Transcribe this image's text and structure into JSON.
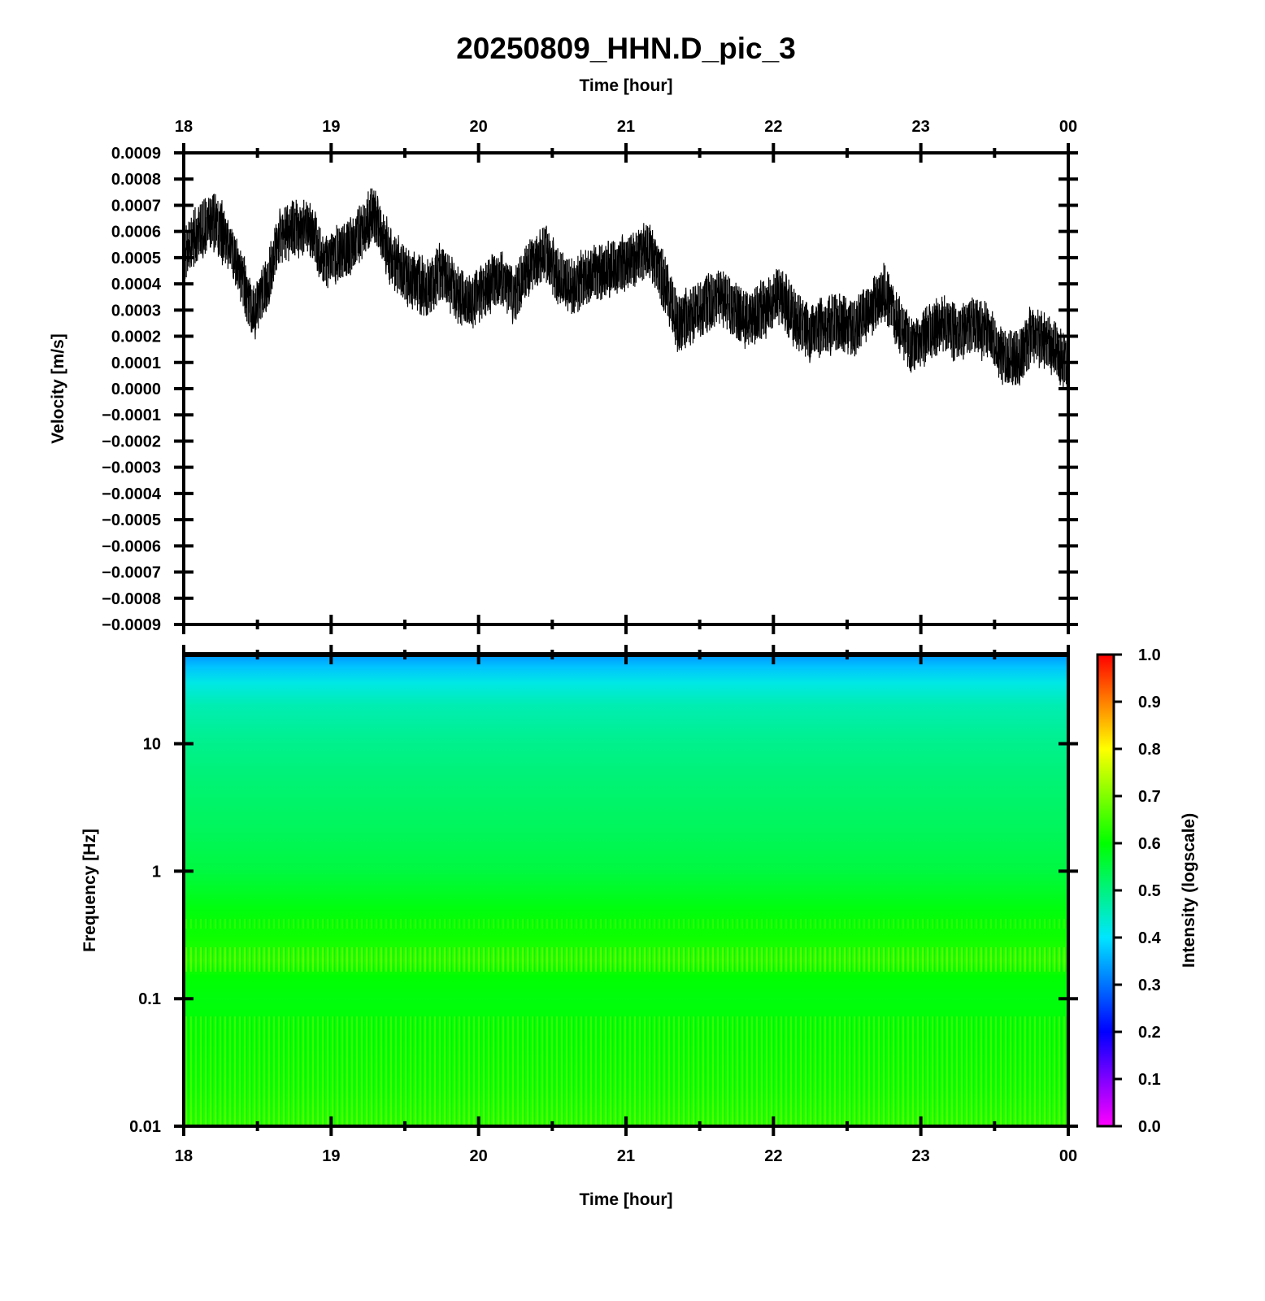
{
  "chart_data": [
    {
      "type": "line",
      "title": "20250809_HHN.D_pic_3",
      "xlabel": "Time [hour]",
      "ylabel": "Velocity [m/s]",
      "x_tick_labels": [
        "18",
        "19",
        "20",
        "21",
        "22",
        "23",
        "00"
      ],
      "y_tick_labels": [
        "0.0009",
        "0.0008",
        "0.0007",
        "0.0006",
        "0.0005",
        "0.0004",
        "0.0003",
        "0.0002",
        "0.0001",
        "0.0000",
        "−0.0001",
        "−0.0002",
        "−0.0003",
        "−0.0004",
        "−0.0005",
        "−0.0006",
        "−0.0007",
        "−0.0008",
        "−0.0009"
      ],
      "xlim": [
        18,
        24
      ],
      "ylim": [
        -0.0009,
        0.0009
      ],
      "grid": false,
      "line_color": "#000000",
      "series": [
        {
          "x": [
            18.0,
            18.1,
            18.2,
            18.3,
            18.4,
            18.47,
            18.55,
            18.65,
            18.75,
            18.85,
            18.95,
            19.05,
            19.15,
            19.28,
            19.4,
            19.55,
            19.65,
            19.75,
            19.85,
            19.95,
            20.05,
            20.15,
            20.25,
            20.35,
            20.45,
            20.55,
            20.65,
            20.75,
            20.85,
            20.95,
            21.05,
            21.15,
            21.25,
            21.35,
            21.45,
            21.55,
            21.65,
            21.75,
            21.85,
            21.95,
            22.05,
            22.15,
            22.25,
            22.35,
            22.45,
            22.55,
            22.65,
            22.75,
            22.85,
            22.95,
            23.05,
            23.15,
            23.25,
            23.35,
            23.45,
            23.55,
            23.65,
            23.75,
            23.85,
            23.95,
            24.0
          ],
          "y": [
            0.00052,
            0.0006,
            0.00064,
            0.00056,
            0.00042,
            0.00029,
            0.00037,
            0.00058,
            0.00061,
            0.00062,
            0.00048,
            0.00052,
            0.00055,
            0.00067,
            0.0005,
            0.00041,
            0.00038,
            0.00045,
            0.00036,
            0.00033,
            0.00039,
            0.00042,
            0.00036,
            0.00047,
            0.00052,
            0.00042,
            0.00039,
            0.00043,
            0.00045,
            0.00047,
            0.00049,
            0.00053,
            0.00042,
            0.00025,
            0.00028,
            0.00033,
            0.00036,
            0.00029,
            0.00026,
            0.00031,
            0.00036,
            0.00026,
            0.00021,
            0.00024,
            0.00026,
            0.00023,
            0.0003,
            0.00037,
            0.00025,
            0.00016,
            0.00021,
            0.00025,
            0.00021,
            0.00024,
            0.00022,
            0.00012,
            0.00011,
            0.0002,
            0.00018,
            0.00012,
            7e-05
          ],
          "noise_band": 0.00016
        }
      ]
    },
    {
      "type": "heatmap",
      "xlabel": "Time [hour]",
      "ylabel": "Frequency [Hz]",
      "x_tick_labels": [
        "18",
        "19",
        "20",
        "21",
        "22",
        "23",
        "00"
      ],
      "y_tick_labels": [
        "10",
        "1",
        "0.1",
        "0.01"
      ],
      "y_scale": "log",
      "xlim": [
        18,
        24
      ],
      "ylim": [
        0.01,
        50
      ],
      "colormap_colors": [
        "#ff00ff",
        "#0000ff",
        "#00e5ff",
        "#00ff00",
        "#ffff00",
        "#ff0000"
      ],
      "colorbar": {
        "label": "Intensity (logscale)",
        "tick_labels": [
          "1.0",
          "0.9",
          "0.8",
          "0.7",
          "0.6",
          "0.5",
          "0.4",
          "0.3",
          "0.2",
          "0.1",
          "0.0"
        ],
        "range": [
          0.0,
          1.0
        ]
      },
      "intensity_profile": {
        "frequency_hz": [
          50,
          40,
          30,
          20,
          10,
          5,
          2,
          1,
          0.5,
          0.3,
          0.2,
          0.15,
          0.1,
          0.05,
          0.02,
          0.01
        ],
        "intensity": [
          0.33,
          0.37,
          0.42,
          0.46,
          0.49,
          0.51,
          0.53,
          0.55,
          0.59,
          0.61,
          0.63,
          0.6,
          0.59,
          0.6,
          0.61,
          0.63
        ]
      }
    }
  ]
}
